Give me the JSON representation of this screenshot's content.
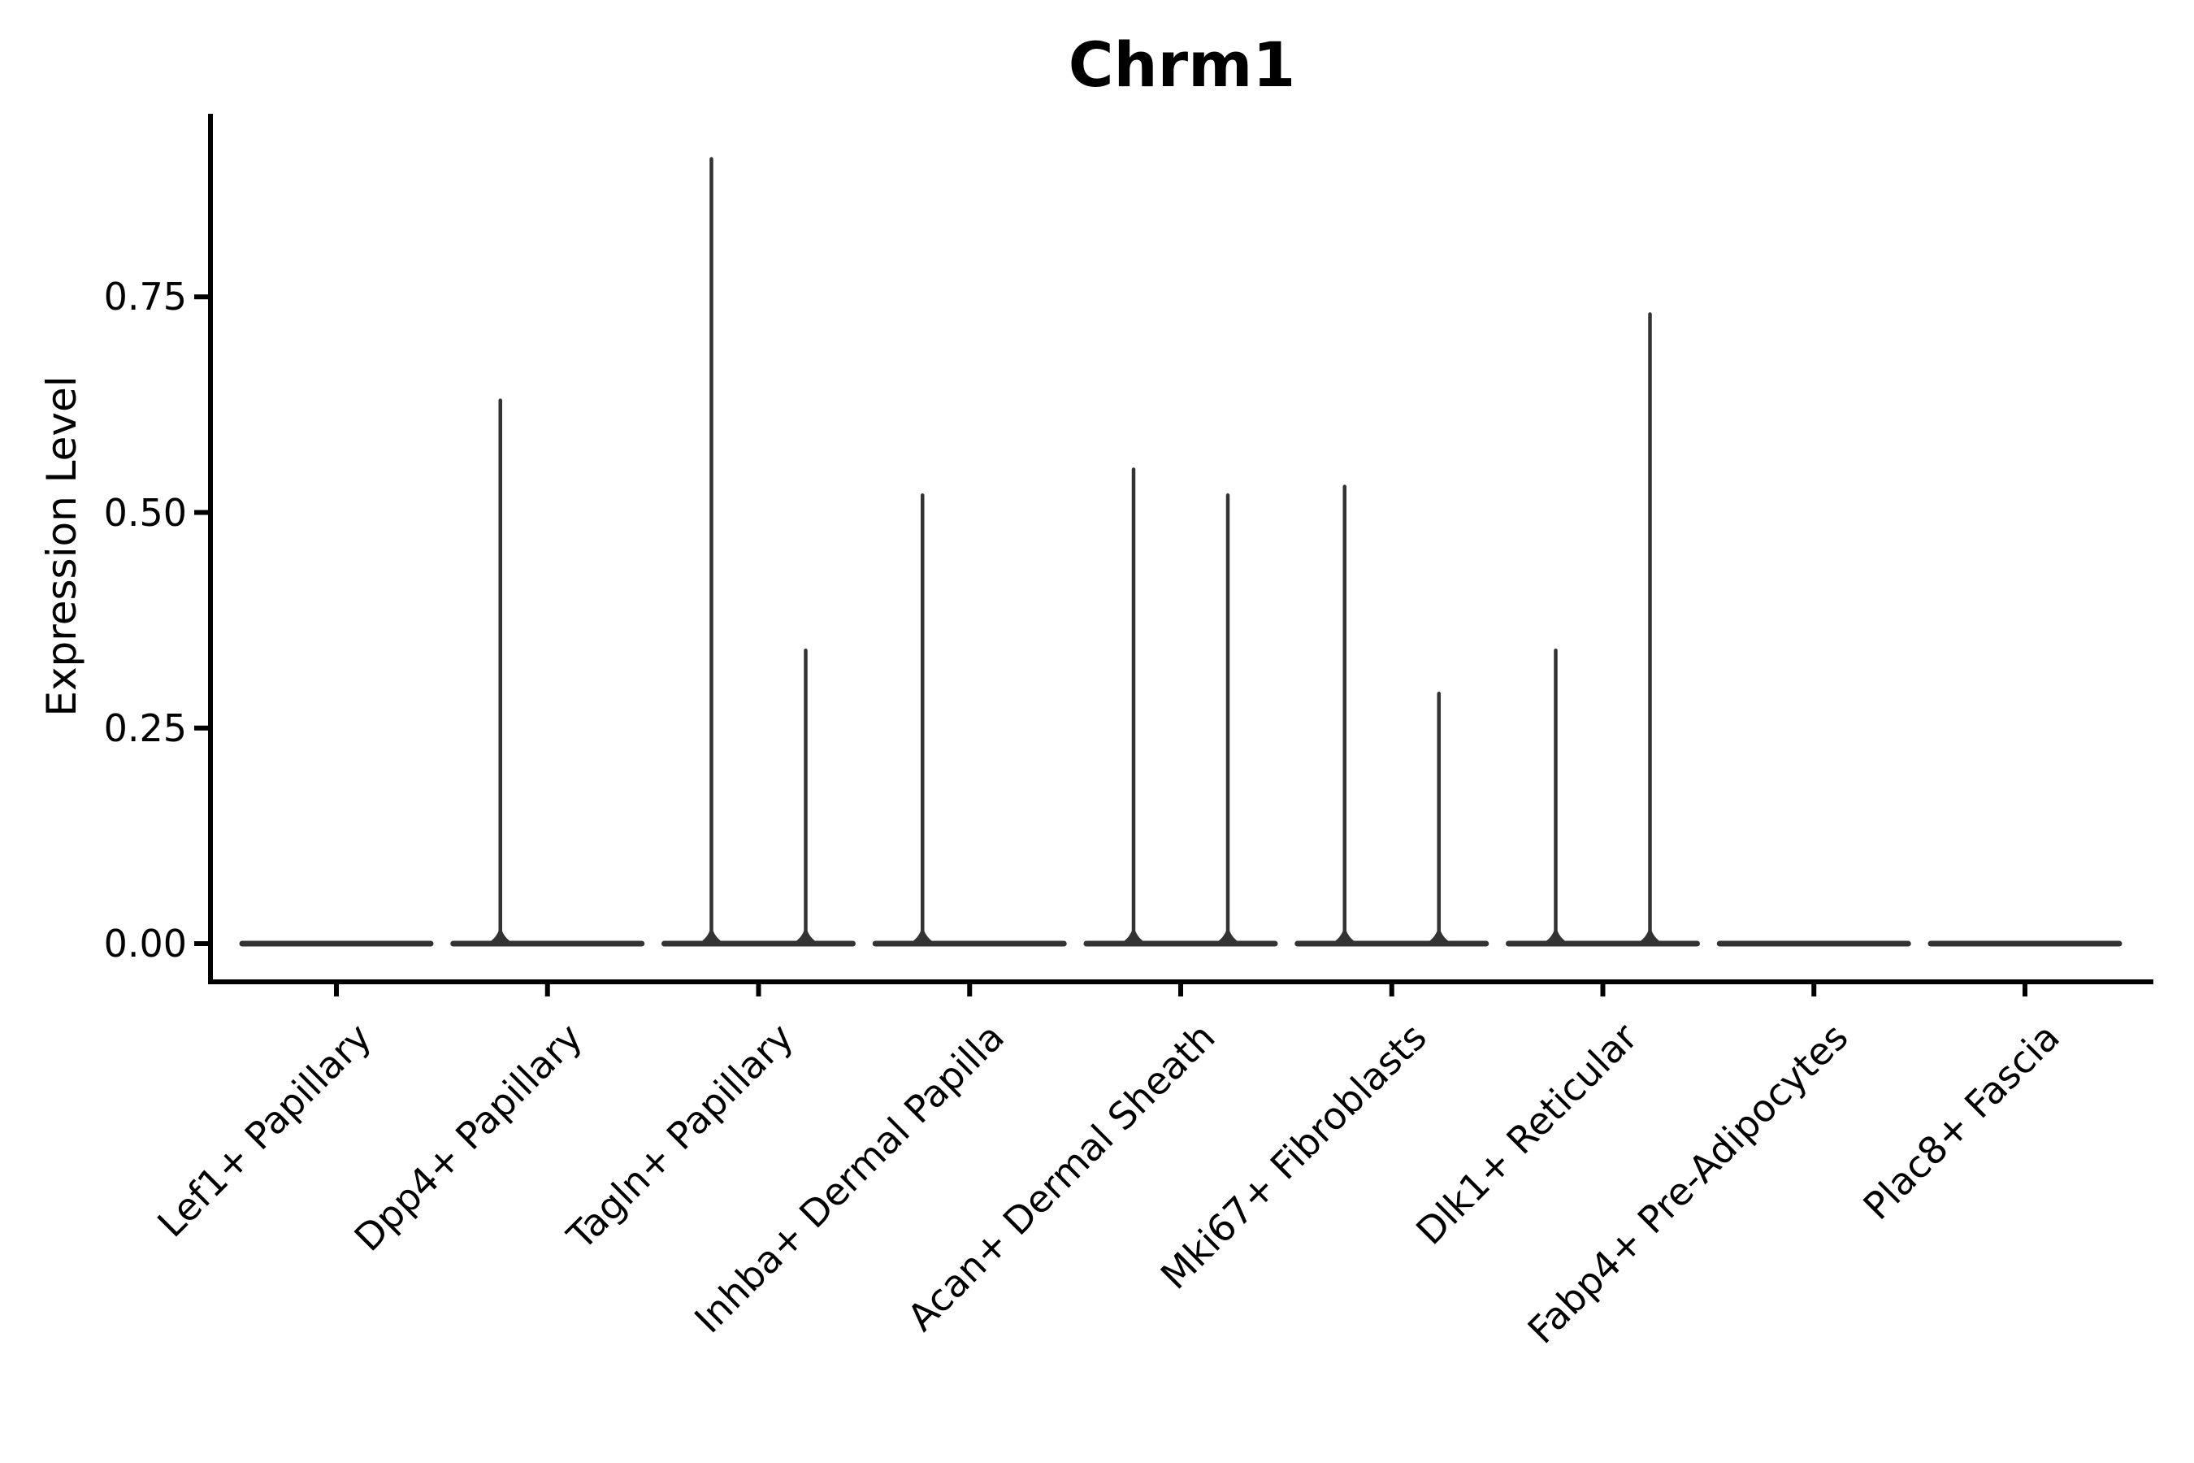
{
  "figure": {
    "background": "#ffffff"
  },
  "chart_data": {
    "type": "violin",
    "title": "Chrm1",
    "xlabel": "",
    "ylabel": "Expression Level",
    "ytick_labels": [
      "0.00",
      "0.25",
      "0.50",
      "0.75"
    ],
    "ytick_values": [
      0,
      0.25,
      0.5,
      0.75
    ],
    "ylim": [
      -0.045,
      0.96
    ],
    "grid": false,
    "legend": "none",
    "style": {
      "violin_stroke": "#333333",
      "axis_stroke": "#000000",
      "text_color": "#000000"
    },
    "description": "Violin plot of Chrm1 expression per fibroblast cell type; each category shows two thin violins collapsed flat at 0 with narrow spikes rising to the maximum expression value where nonzero cells exist.",
    "categories": [
      {
        "label": "Lef1+ Papillary",
        "baseline": 0,
        "spikes": []
      },
      {
        "label": "Dpp4+ Papillary",
        "baseline": 0,
        "spikes": [
          {
            "side": "left",
            "max": 0.63
          }
        ]
      },
      {
        "label": "Tagln+ Papillary",
        "baseline": 0,
        "spikes": [
          {
            "side": "left",
            "max": 0.91
          },
          {
            "side": "right",
            "max": 0.34
          }
        ]
      },
      {
        "label": "Inhba+ Dermal Papilla",
        "baseline": 0,
        "spikes": [
          {
            "side": "left",
            "max": 0.52
          }
        ]
      },
      {
        "label": "Acan+ Dermal Sheath",
        "baseline": 0,
        "spikes": [
          {
            "side": "left",
            "max": 0.55
          },
          {
            "side": "right",
            "max": 0.52
          }
        ]
      },
      {
        "label": "Mki67+ Fibroblasts",
        "baseline": 0,
        "spikes": [
          {
            "side": "left",
            "max": 0.53
          },
          {
            "side": "right",
            "max": 0.29
          }
        ]
      },
      {
        "label": "Dlk1+ Reticular",
        "baseline": 0,
        "spikes": [
          {
            "side": "left",
            "max": 0.34
          },
          {
            "side": "right",
            "max": 0.73
          }
        ]
      },
      {
        "label": "Fabp4+ Pre-Adipocytes",
        "baseline": 0,
        "spikes": []
      },
      {
        "label": "Plac8+ Fascia",
        "baseline": 0,
        "spikes": []
      }
    ]
  }
}
